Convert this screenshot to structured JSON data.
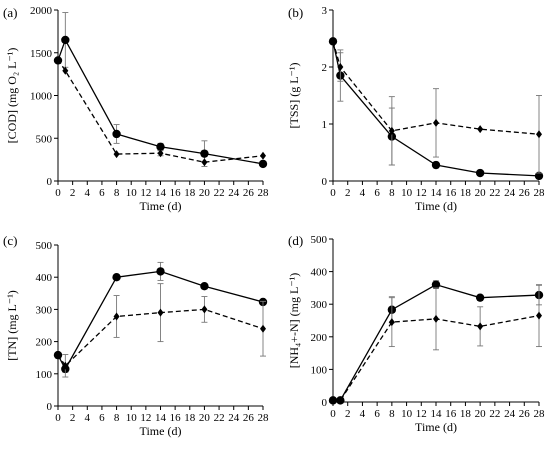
{
  "chart_data": [
    {
      "type": "line",
      "panel_label": "(a)",
      "ylabel": "[COD] (mg O₂ L⁻¹)",
      "xlabel": "Time (d)",
      "xlim": [
        0,
        28
      ],
      "ylim": [
        0,
        2000
      ],
      "x_ticks": [
        0,
        2,
        4,
        6,
        8,
        10,
        12,
        14,
        16,
        18,
        20,
        22,
        24,
        26,
        28
      ],
      "y_ticks": [
        0,
        500,
        1000,
        1500,
        2000
      ],
      "series": [
        {
          "style": "solid",
          "marker": "circle",
          "x": [
            0,
            1,
            8,
            14,
            20,
            28
          ],
          "y": [
            1410,
            1650,
            550,
            400,
            320,
            200
          ],
          "err": [
            0,
            320,
            110,
            40,
            150,
            20
          ]
        },
        {
          "style": "dashed",
          "marker": "diamond",
          "x": [
            0,
            1,
            8,
            14,
            20,
            28
          ],
          "y": [
            1420,
            1290,
            315,
            325,
            220,
            295
          ],
          "err": [
            0,
            0,
            0,
            30,
            0,
            0
          ]
        }
      ]
    },
    {
      "type": "line",
      "panel_label": "(b)",
      "ylabel": "[TSS] (g L⁻¹)",
      "xlabel": "Time (d)",
      "xlim": [
        0,
        28
      ],
      "ylim": [
        0,
        3
      ],
      "x_ticks": [
        0,
        2,
        4,
        6,
        8,
        10,
        12,
        14,
        16,
        18,
        20,
        22,
        24,
        26,
        28
      ],
      "y_ticks": [
        0,
        1,
        2,
        3
      ],
      "series": [
        {
          "style": "solid",
          "marker": "circle",
          "x": [
            0,
            1,
            8,
            14,
            20,
            28
          ],
          "y": [
            2.45,
            1.85,
            0.78,
            0.28,
            0.14,
            0.09
          ],
          "err": [
            0,
            0.45,
            0.5,
            0.05,
            0,
            0.05
          ]
        },
        {
          "style": "dashed",
          "marker": "diamond",
          "x": [
            0,
            1,
            8,
            14,
            20,
            28
          ],
          "y": [
            2.45,
            2.0,
            0.88,
            1.02,
            0.91,
            0.82
          ],
          "err": [
            0,
            0.25,
            0.6,
            0.6,
            0,
            0.68
          ]
        }
      ]
    },
    {
      "type": "line",
      "panel_label": "(c)",
      "ylabel": "[TN] (mg L⁻¹)",
      "xlabel": "Time (d)",
      "xlim": [
        0,
        28
      ],
      "ylim": [
        0,
        500
      ],
      "x_ticks": [
        0,
        2,
        4,
        6,
        8,
        10,
        12,
        14,
        16,
        18,
        20,
        22,
        24,
        26,
        28
      ],
      "y_ticks": [
        0,
        100,
        200,
        300,
        400,
        500
      ],
      "series": [
        {
          "style": "solid",
          "marker": "circle",
          "x": [
            0,
            1,
            8,
            14,
            20,
            28
          ],
          "y": [
            158,
            115,
            400,
            418,
            372,
            323
          ],
          "err": [
            0,
            10,
            0,
            28,
            0,
            0
          ]
        },
        {
          "style": "dashed",
          "marker": "diamond",
          "x": [
            0,
            1,
            8,
            14,
            20,
            28
          ],
          "y": [
            160,
            125,
            278,
            290,
            300,
            240
          ],
          "err": [
            0,
            35,
            65,
            90,
            40,
            85
          ]
        }
      ]
    },
    {
      "type": "line",
      "panel_label": "(d)",
      "ylabel": "[NH₄+-N] (mg L⁻¹)",
      "xlabel": "Time (d)",
      "xlim": [
        0,
        28
      ],
      "ylim": [
        0,
        500
      ],
      "x_ticks": [
        0,
        2,
        4,
        6,
        8,
        10,
        12,
        14,
        16,
        18,
        20,
        22,
        24,
        26,
        28
      ],
      "y_ticks": [
        0,
        100,
        200,
        300,
        400,
        500
      ],
      "series": [
        {
          "style": "solid",
          "marker": "circle",
          "x": [
            0,
            1,
            8,
            14,
            20,
            28
          ],
          "y": [
            5,
            5,
            283,
            360,
            320,
            328
          ],
          "err": [
            0,
            0,
            40,
            12,
            0,
            30
          ]
        },
        {
          "style": "dashed",
          "marker": "diamond",
          "x": [
            0,
            1,
            8,
            14,
            20,
            28
          ],
          "y": [
            5,
            5,
            245,
            255,
            232,
            265
          ],
          "err": [
            0,
            0,
            75,
            95,
            60,
            95
          ]
        }
      ]
    }
  ]
}
